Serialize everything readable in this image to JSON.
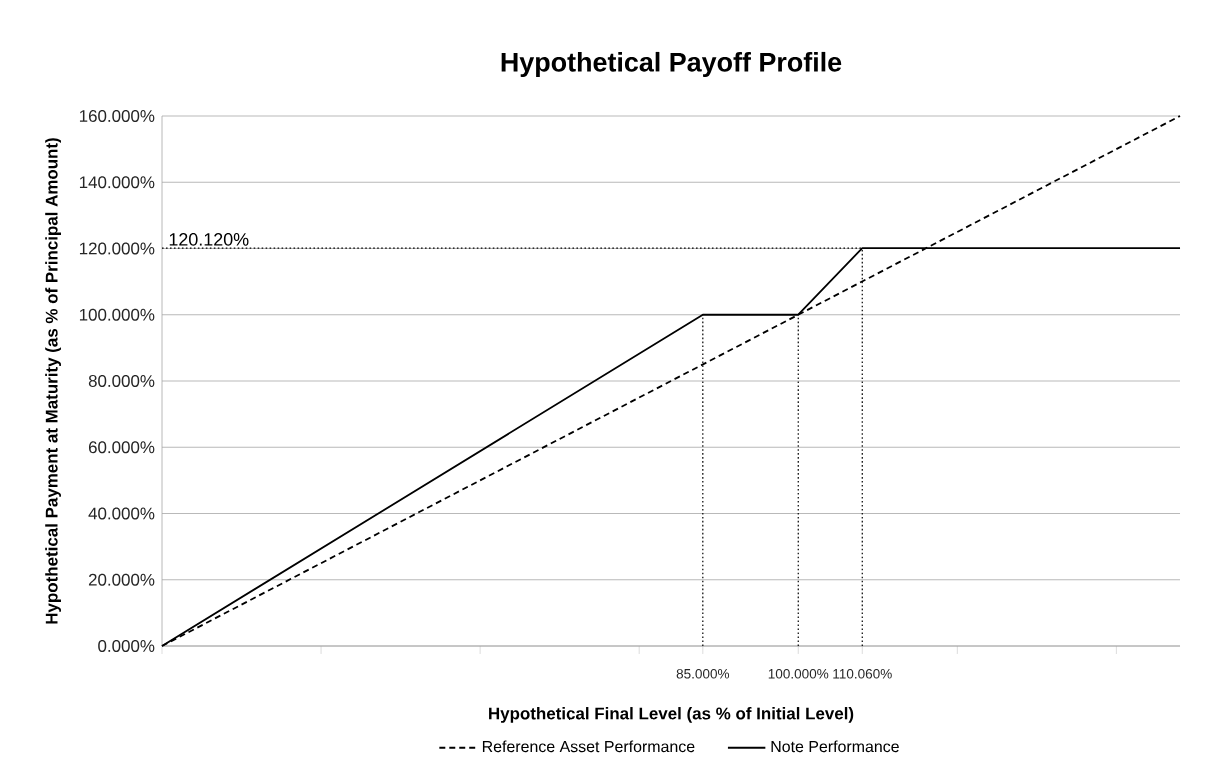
{
  "chart_data": {
    "type": "line",
    "title": "Hypothetical Payoff Profile",
    "xlabel": "Hypothetical Final Level (as % of Initial Level)",
    "ylabel": "Hypothetical Payment at Maturity (as % of Principal Amount)",
    "xlim": [
      0,
      160
    ],
    "ylim": [
      0,
      160
    ],
    "xticks": [
      {
        "value": 0,
        "label": null
      },
      {
        "value": 25,
        "label": null
      },
      {
        "value": 50,
        "label": null
      },
      {
        "value": 75,
        "label": null
      },
      {
        "value": 85,
        "label": "85.000%"
      },
      {
        "value": 100,
        "label": "100.000%"
      },
      {
        "value": 110.06,
        "label": "110.060%"
      },
      {
        "value": 125,
        "label": null
      },
      {
        "value": 150,
        "label": null
      }
    ],
    "yticks": [
      {
        "value": 0,
        "label": "0.000%"
      },
      {
        "value": 20,
        "label": "20.000%"
      },
      {
        "value": 40,
        "label": "40.000%"
      },
      {
        "value": 60,
        "label": "60.000%"
      },
      {
        "value": 80,
        "label": "80.000%"
      },
      {
        "value": 100,
        "label": "100.000%"
      },
      {
        "value": 120,
        "label": "120.000%"
      },
      {
        "value": 140,
        "label": "140.000%"
      },
      {
        "value": 160,
        "label": "160.000%"
      }
    ],
    "grid": "y",
    "legend": "bottom",
    "marker": "none",
    "series": [
      {
        "name": "Reference Asset Performance",
        "color": "#000000",
        "line_style": "dashed",
        "x": [
          0,
          160
        ],
        "values": [
          0,
          160
        ]
      },
      {
        "name": "Note Performance",
        "color": "#000000",
        "line_style": "solid",
        "x": [
          0,
          85,
          100,
          110.06,
          160
        ],
        "values": [
          0,
          100,
          100,
          120.12,
          120.12
        ]
      },
      {
        "color": "#000000",
        "line_style": "dotted",
        "x": [
          85,
          85
        ],
        "values": [
          0,
          100
        ]
      },
      {
        "color": "#000000",
        "line_style": "dotted",
        "x": [
          100,
          100
        ],
        "values": [
          0,
          100
        ]
      },
      {
        "color": "#000000",
        "line_style": "dotted",
        "x": [
          110.06,
          110.06
        ],
        "values": [
          0,
          120.12
        ]
      },
      {
        "color": "#000000",
        "line_style": "dotted",
        "x": [
          0,
          110.06
        ],
        "values": [
          120.12,
          120.12
        ]
      }
    ],
    "annotations": [
      {
        "text": "120.120%",
        "x": 0,
        "y": 120.12
      }
    ]
  }
}
